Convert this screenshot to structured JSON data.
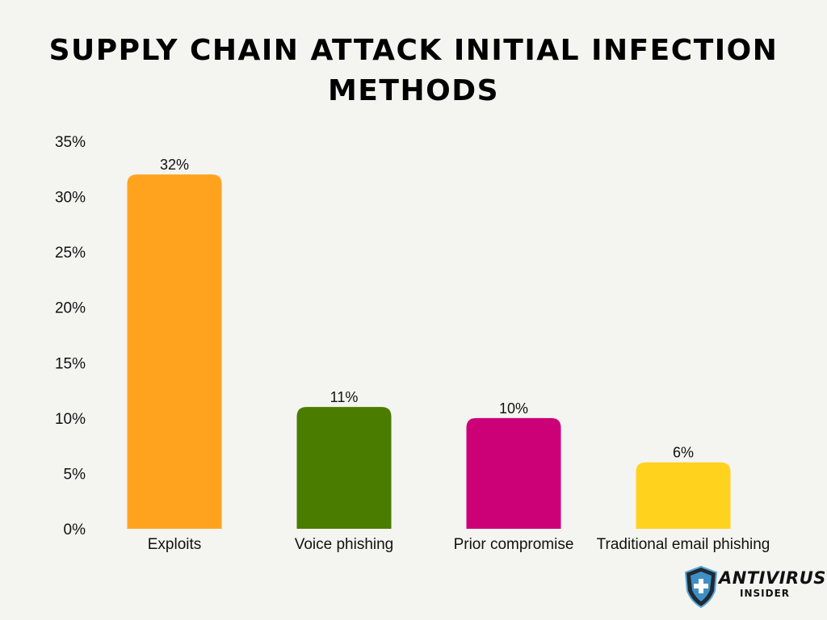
{
  "chart_data": {
    "type": "bar",
    "title": "Supply Chain Attack Initial Infection Methods",
    "categories": [
      "Exploits",
      "Voice phishing",
      "Prior compromise",
      "Traditional email phishing"
    ],
    "values": [
      32,
      11,
      10,
      6
    ],
    "data_labels": [
      "32%",
      "11%",
      "10%",
      "6%"
    ],
    "colors": [
      "#ffa31f",
      "#4a7c00",
      "#cc0077",
      "#ffd21e"
    ],
    "y_ticks": [
      "0%",
      "5%",
      "10%",
      "15%",
      "20%",
      "25%",
      "30%",
      "35%"
    ],
    "ylim": [
      0,
      35
    ],
    "xlabel": "",
    "ylabel": "",
    "grid": false,
    "legend": "none"
  },
  "logo": {
    "line1": "ANTIVIRUS",
    "line2": "INSIDER",
    "icon": "shield-plus-icon"
  }
}
